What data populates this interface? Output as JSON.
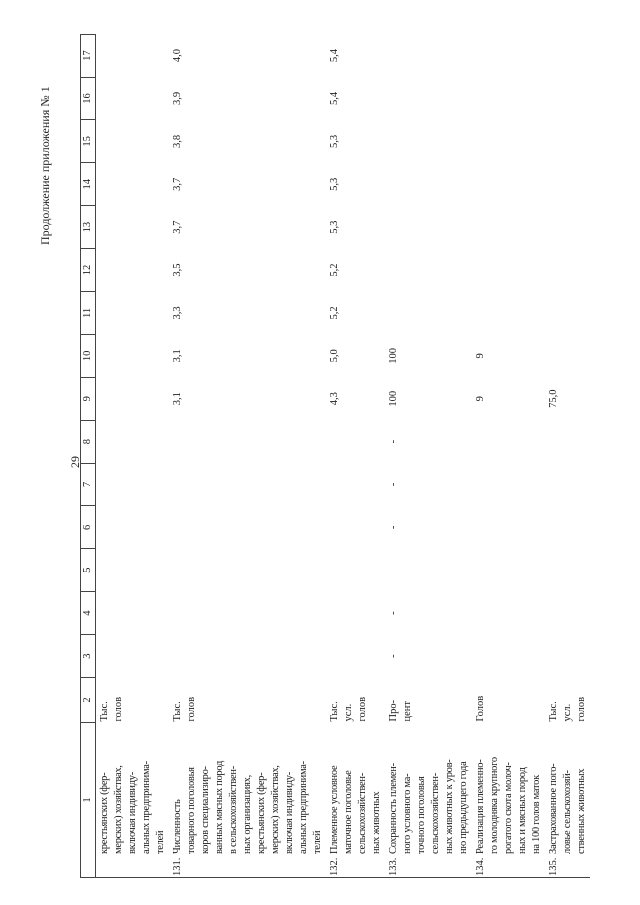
{
  "header": {
    "page_number": "29",
    "continuation": "Продолжение приложения № 1"
  },
  "table": {
    "columns": [
      "1",
      "2",
      "3",
      "4",
      "5",
      "6",
      "7",
      "8",
      "9",
      "10",
      "11",
      "12",
      "13",
      "14",
      "15",
      "16",
      "17"
    ],
    "rows": [
      {
        "num": null,
        "label": [
          "крестьянских (фер-",
          "мерских) хозяйствах,",
          "включая индивиду-",
          "альных предпринима-",
          "телей"
        ],
        "unit": [
          "Тыс.",
          "голов"
        ],
        "values": [
          null,
          null,
          null,
          null,
          null,
          null,
          null,
          null,
          null,
          null,
          null,
          null,
          null,
          null,
          null
        ]
      },
      {
        "num": "131.",
        "label": [
          "Численность",
          "товарного поголовья",
          "коров специализиро-",
          "ванных мясных пород",
          "в сельскохозяйствен-",
          "ных организациях,",
          "крестьянских (фер-",
          "мерских) хозяйствах,",
          "включая индивиду-",
          "альных предпринима-",
          "телей"
        ],
        "unit": [
          "Тыс.",
          "голов"
        ],
        "values": [
          null,
          null,
          null,
          null,
          null,
          null,
          "3,1",
          "3,1",
          "3,3",
          "3,5",
          "3,7",
          "3,7",
          "3,8",
          "3,9",
          "4,0"
        ]
      },
      {
        "num": "132.",
        "label": [
          "Племенное условное",
          "маточное поголовье",
          "сельскохозяйствен-",
          "ных животных"
        ],
        "unit": [
          "Тыс.",
          "усл.",
          "голов"
        ],
        "values": [
          null,
          null,
          null,
          null,
          null,
          null,
          "4,3",
          "5,0",
          "5,2",
          "5,2",
          "5,3",
          "5,3",
          "5,3",
          "5,4",
          "5,4"
        ]
      },
      {
        "num": "133.",
        "label": [
          "Сохранность племен-",
          "ного условного ма-",
          "точного поголовья",
          "сельскохозяйствен-",
          "ных животных к уров-",
          "ню предыдущего года"
        ],
        "unit": [
          "Про-",
          "цент"
        ],
        "values": [
          "-",
          "-",
          null,
          "-",
          "-",
          "-",
          "100",
          "100",
          null,
          null,
          null,
          null,
          null,
          null,
          null
        ]
      },
      {
        "num": "134.",
        "label": [
          "Реализация племенно-",
          "го молодняка крупного",
          "рогатого скота молоч-",
          "ных и мясных пород",
          "на 100 голов маток"
        ],
        "unit": [
          "Голов"
        ],
        "values": [
          null,
          null,
          null,
          null,
          null,
          null,
          "9",
          "9",
          null,
          null,
          null,
          null,
          null,
          null,
          null
        ]
      },
      {
        "num": "135.",
        "label": [
          "Застрахованное пого-",
          "ловье сельскохозяй-",
          "ственных животных"
        ],
        "unit": [
          "Тыс.",
          "усл.",
          "голов"
        ],
        "values": [
          null,
          null,
          null,
          null,
          null,
          null,
          "75,0",
          null,
          null,
          null,
          null,
          null,
          null,
          null,
          null
        ]
      }
    ]
  }
}
